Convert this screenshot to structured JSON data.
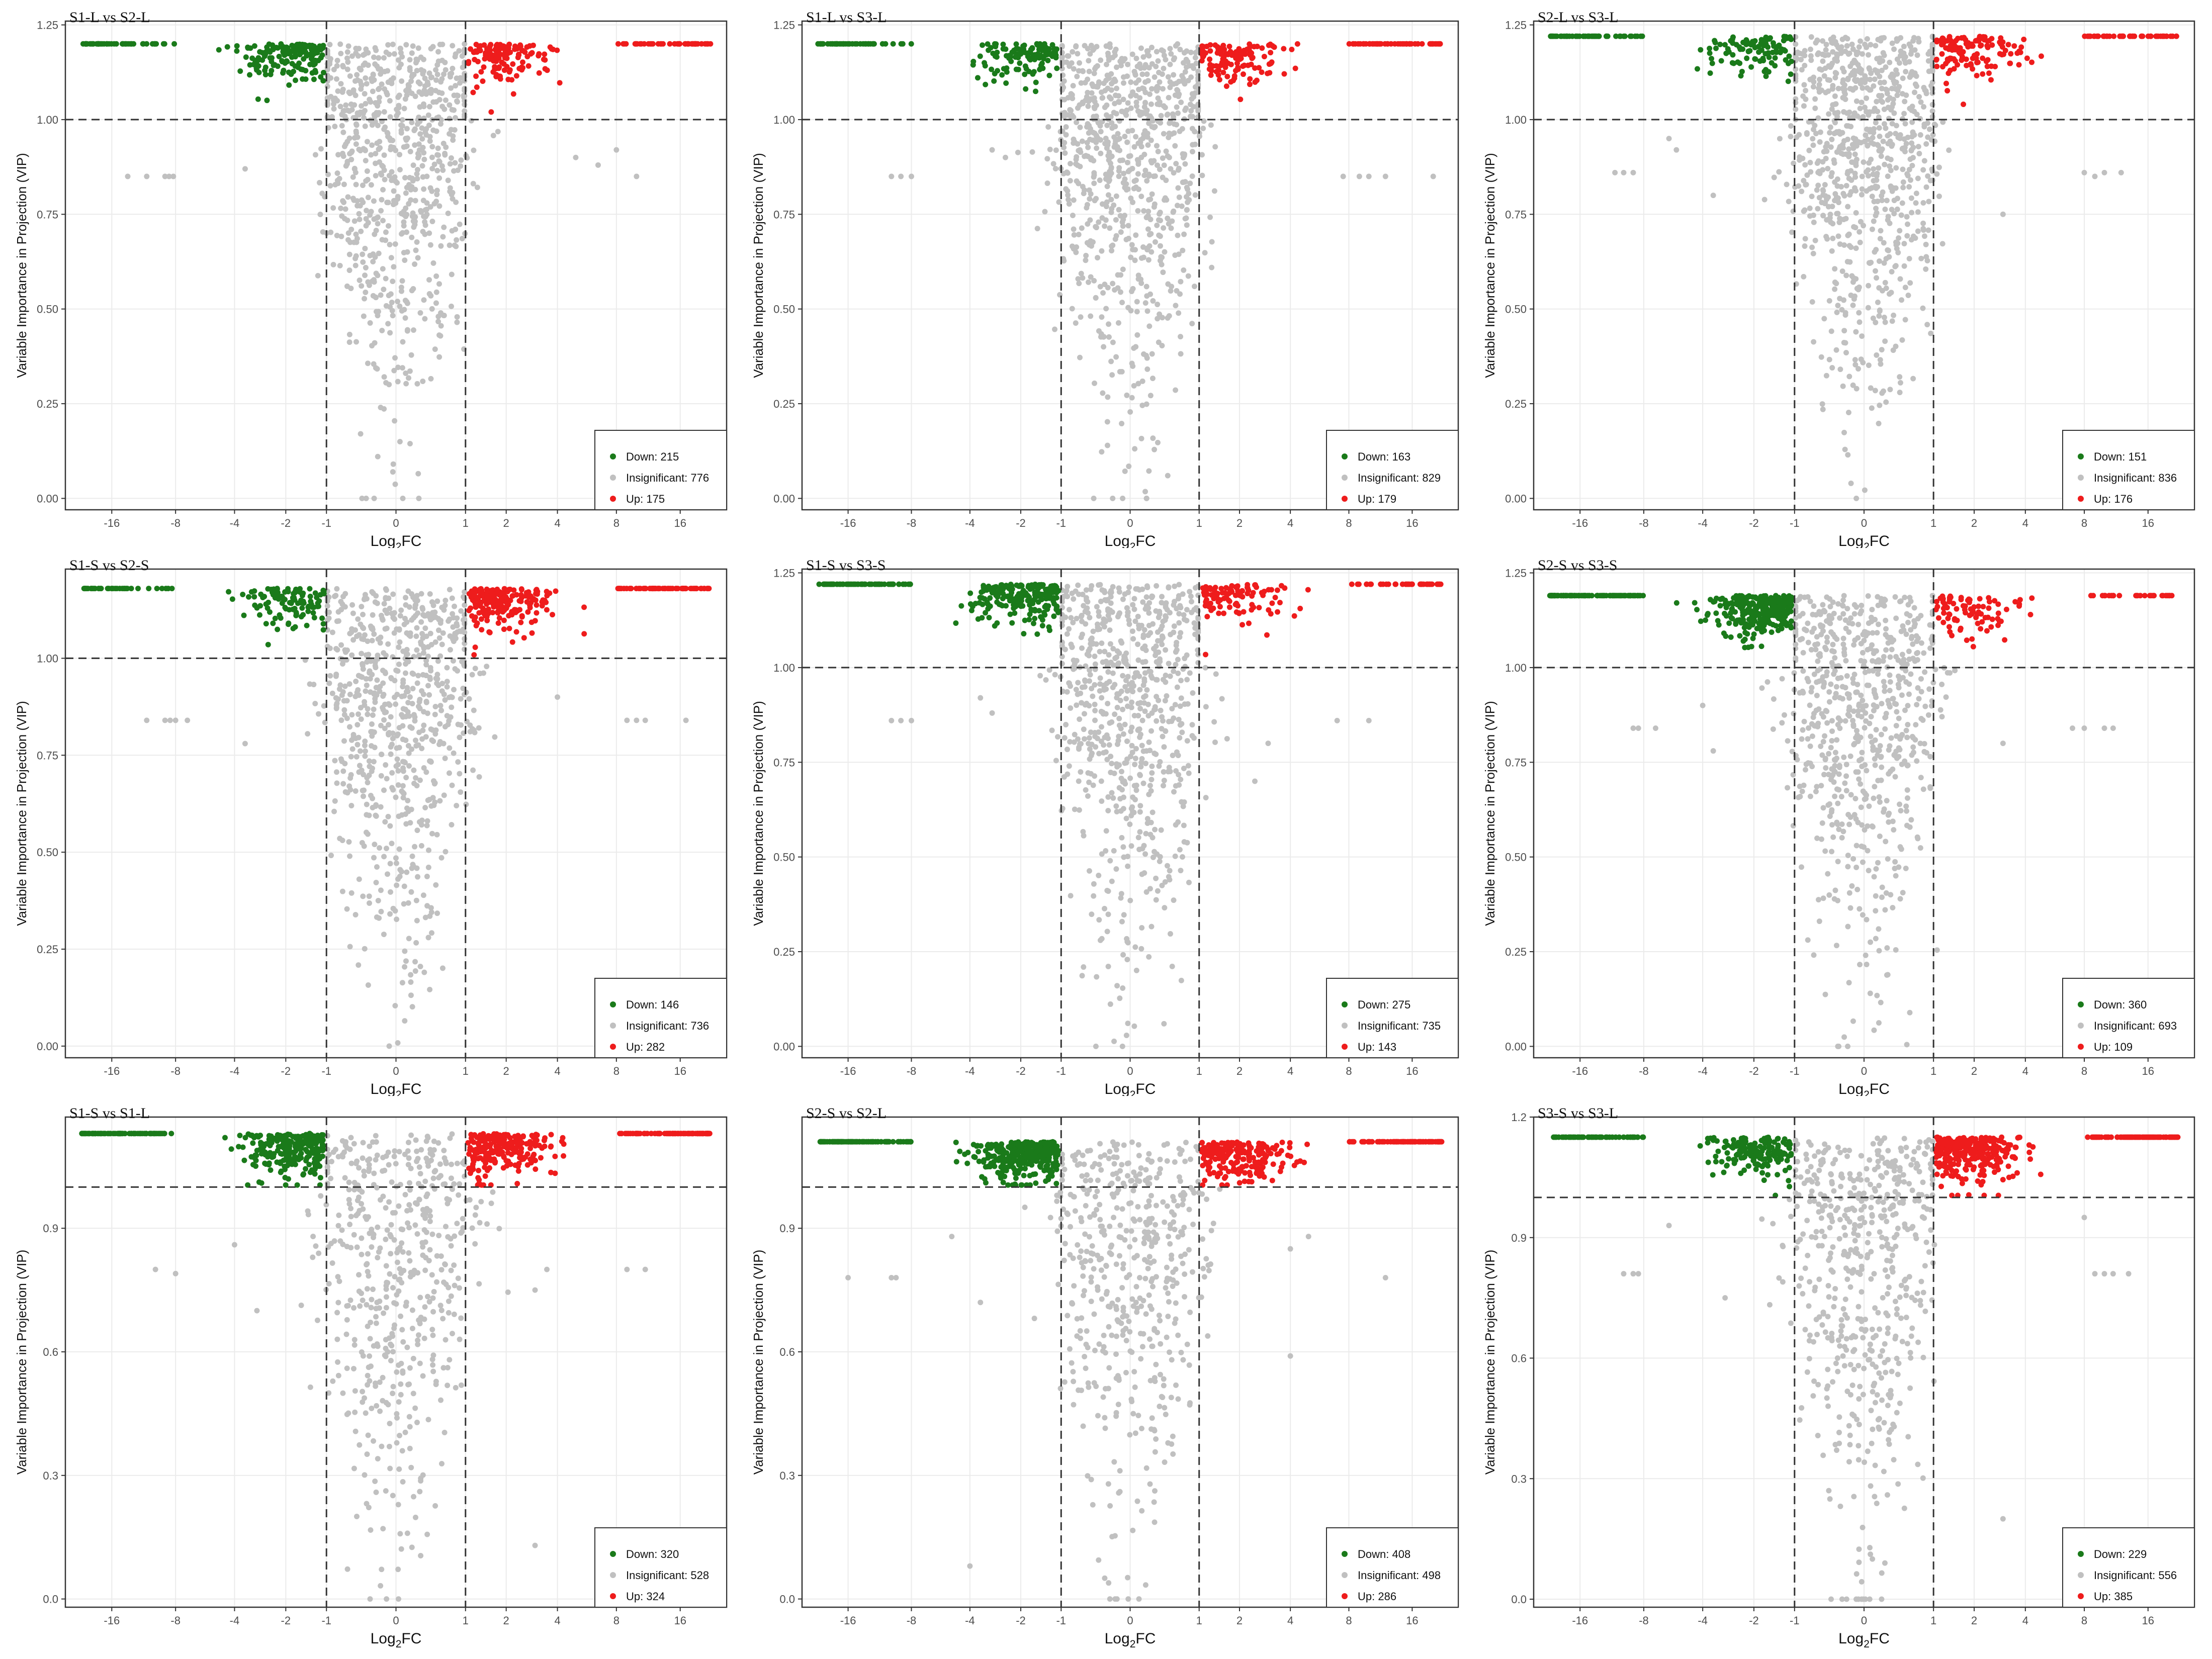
{
  "figure": {
    "background": "#ffffff",
    "colors": {
      "down": "#1a7a1a",
      "insignificant": "#c0c0c0",
      "up": "#ee1c1c",
      "threshold_line": "#333333",
      "grid": "#ebebeb"
    }
  },
  "chart_data": [
    {
      "type": "scatter",
      "title": "S1-L vs S2-L",
      "xlabel": "Log2FC",
      "ylabel": "Variable Importance in Projection (VIP)",
      "x_ticks": [
        -16,
        -8,
        -4,
        -2,
        -1,
        0,
        1,
        2,
        4,
        8,
        16
      ],
      "y_ticks": [
        "0.00",
        "0.25",
        "0.50",
        "0.75",
        "1.00",
        "1.25"
      ],
      "ylim": [
        -0.03,
        1.26
      ],
      "vip_threshold": 1.0,
      "fc_thresholds": [
        -1,
        1
      ],
      "top_vip": 1.2,
      "outliers": [
        [
          -11,
          0.85
        ],
        [
          -9,
          0.85
        ],
        [
          -8.6,
          0.85
        ],
        [
          -8.2,
          0.85
        ],
        [
          -13.5,
          0.85
        ],
        [
          5,
          0.9
        ],
        [
          6.5,
          0.88
        ],
        [
          8,
          0.92
        ],
        [
          10,
          0.85
        ],
        [
          -3.5,
          0.87
        ]
      ],
      "legend": {
        "position": "bottom-right",
        "items": [
          {
            "label": "Down: 215",
            "key": "down"
          },
          {
            "label": "Insignificant: 776",
            "key": "insignificant"
          },
          {
            "label": "Up: 175",
            "key": "up"
          }
        ]
      }
    },
    {
      "type": "scatter",
      "title": "S1-L vs S3-L",
      "xlabel": "Log2FC",
      "ylabel": "Variable Importance in Projection (VIP)",
      "x_ticks": [
        -16,
        -8,
        -4,
        -2,
        -1,
        0,
        1,
        2,
        4,
        8,
        16
      ],
      "y_ticks": [
        "0.00",
        "0.25",
        "0.50",
        "0.75",
        "1.00",
        "1.25"
      ],
      "ylim": [
        -0.03,
        1.26
      ],
      "vip_threshold": 1.0,
      "fc_thresholds": [
        -1,
        1
      ],
      "top_vip": 1.2,
      "outliers": [
        [
          -10,
          0.85
        ],
        [
          -9,
          0.85
        ],
        [
          -8,
          0.85
        ],
        [
          7.5,
          0.85
        ],
        [
          9,
          0.85
        ],
        [
          10,
          0.85
        ],
        [
          12,
          0.85
        ],
        [
          20,
          0.85
        ],
        [
          -3,
          0.92
        ],
        [
          -2.5,
          0.9
        ]
      ],
      "legend": {
        "position": "bottom-right",
        "items": [
          {
            "label": "Down: 163",
            "key": "down"
          },
          {
            "label": "Insignificant: 829",
            "key": "insignificant"
          },
          {
            "label": "Up: 179",
            "key": "up"
          }
        ]
      }
    },
    {
      "type": "scatter",
      "title": "S2-L vs S3-L",
      "xlabel": "Log2FC",
      "ylabel": "Variable Importance in Projection (VIP)",
      "x_ticks": [
        -16,
        -8,
        -4,
        -2,
        -1,
        0,
        1,
        2,
        4,
        8,
        16
      ],
      "y_ticks": [
        "0.00",
        "0.25",
        "0.50",
        "0.75",
        "1.00",
        "1.25"
      ],
      "ylim": [
        -0.03,
        1.26
      ],
      "vip_threshold": 1.0,
      "fc_thresholds": [
        -1,
        1
      ],
      "top_vip": 1.22,
      "outliers": [
        [
          -11,
          0.86
        ],
        [
          -10,
          0.86
        ],
        [
          -9,
          0.86
        ],
        [
          -6,
          0.95
        ],
        [
          -5.5,
          0.92
        ],
        [
          8,
          0.86
        ],
        [
          9,
          0.85
        ],
        [
          10,
          0.86
        ],
        [
          12,
          0.86
        ],
        [
          -3.5,
          0.8
        ],
        [
          3,
          0.75
        ]
      ],
      "legend": {
        "position": "bottom-right",
        "items": [
          {
            "label": "Down: 151",
            "key": "down"
          },
          {
            "label": "Insignificant: 836",
            "key": "insignificant"
          },
          {
            "label": "Up: 176",
            "key": "up"
          }
        ]
      }
    },
    {
      "type": "scatter",
      "title": "S1-S vs S2-S",
      "xlabel": "Log2FC",
      "ylabel": "Variable Importance in Projection (VIP)",
      "x_ticks": [
        -16,
        -8,
        -4,
        -2,
        -1,
        0,
        1,
        2,
        4,
        8,
        16
      ],
      "y_ticks": [
        "0.00",
        "0.25",
        "0.50",
        "0.75",
        "1.00"
      ],
      "ylim": [
        -0.03,
        1.23
      ],
      "vip_threshold": 1.0,
      "fc_thresholds": [
        -1,
        1
      ],
      "top_vip": 1.18,
      "outliers": [
        [
          -11,
          0.84
        ],
        [
          -9,
          0.84
        ],
        [
          -8.5,
          0.84
        ],
        [
          -8,
          0.84
        ],
        [
          -7,
          0.84
        ],
        [
          9,
          0.84
        ],
        [
          10,
          0.84
        ],
        [
          11,
          0.84
        ],
        [
          17,
          0.84
        ],
        [
          4,
          0.9
        ],
        [
          -3.5,
          0.78
        ]
      ],
      "legend": {
        "position": "bottom-right",
        "items": [
          {
            "label": "Down: 146",
            "key": "down"
          },
          {
            "label": "Insignificant: 736",
            "key": "insignificant"
          },
          {
            "label": "Up: 282",
            "key": "up"
          }
        ]
      }
    },
    {
      "type": "scatter",
      "title": "S1-S vs S3-S",
      "xlabel": "Log2FC",
      "ylabel": "Variable Importance in Projection (VIP)",
      "x_ticks": [
        -16,
        -8,
        -4,
        -2,
        -1,
        0,
        1,
        2,
        4,
        8,
        16
      ],
      "y_ticks": [
        "0.00",
        "0.25",
        "0.50",
        "0.75",
        "1.00",
        "1.25"
      ],
      "ylim": [
        -0.03,
        1.26
      ],
      "vip_threshold": 1.0,
      "fc_thresholds": [
        -1,
        1
      ],
      "top_vip": 1.22,
      "outliers": [
        [
          -10,
          0.86
        ],
        [
          -9,
          0.86
        ],
        [
          -8,
          0.86
        ],
        [
          7,
          0.86
        ],
        [
          10,
          0.86
        ],
        [
          -3.5,
          0.92
        ],
        [
          -3,
          0.88
        ],
        [
          3,
          0.8
        ],
        [
          2.5,
          0.7
        ]
      ],
      "legend": {
        "position": "bottom-right",
        "items": [
          {
            "label": "Down: 275",
            "key": "down"
          },
          {
            "label": "Insignificant: 735",
            "key": "insignificant"
          },
          {
            "label": "Up: 143",
            "key": "up"
          }
        ]
      }
    },
    {
      "type": "scatter",
      "title": "S2-S vs S3-S",
      "xlabel": "Log2FC",
      "ylabel": "Variable Importance in Projection (VIP)",
      "x_ticks": [
        -16,
        -8,
        -4,
        -2,
        -1,
        0,
        1,
        2,
        4,
        8,
        16
      ],
      "y_ticks": [
        "0.00",
        "0.25",
        "0.50",
        "0.75",
        "1.00",
        "1.25"
      ],
      "ylim": [
        -0.03,
        1.26
      ],
      "vip_threshold": 1.0,
      "fc_thresholds": [
        -1,
        1
      ],
      "top_vip": 1.19,
      "outliers": [
        [
          -9,
          0.84
        ],
        [
          -8.5,
          0.84
        ],
        [
          -7,
          0.84
        ],
        [
          7,
          0.84
        ],
        [
          8,
          0.84
        ],
        [
          10,
          0.84
        ],
        [
          11,
          0.84
        ],
        [
          -4,
          0.9
        ],
        [
          3,
          0.8
        ],
        [
          -3.5,
          0.78
        ]
      ],
      "legend": {
        "position": "bottom-right",
        "items": [
          {
            "label": "Down: 360",
            "key": "down"
          },
          {
            "label": "Insignificant: 693",
            "key": "insignificant"
          },
          {
            "label": "Up: 109",
            "key": "up"
          }
        ]
      }
    },
    {
      "type": "scatter",
      "title": "S1-S vs S1-L",
      "xlabel": "Log2FC",
      "ylabel": "Variable Importance in Projection (VIP)",
      "x_ticks": [
        -16,
        -8,
        -4,
        -2,
        -1,
        0,
        1,
        2,
        4,
        8,
        16
      ],
      "y_ticks": [
        "0.0",
        "0.3",
        "0.6",
        "0.9"
      ],
      "ylim": [
        -0.02,
        1.17
      ],
      "vip_threshold": 1.0,
      "fc_thresholds": [
        -1,
        1
      ],
      "top_vip": 1.13,
      "outliers": [
        [
          -10,
          0.8
        ],
        [
          -8,
          0.79
        ],
        [
          -4,
          0.86
        ],
        [
          9,
          0.8
        ],
        [
          11,
          0.8
        ],
        [
          3,
          0.75
        ],
        [
          3.5,
          0.8
        ],
        [
          3,
          0.13
        ],
        [
          -3,
          0.7
        ]
      ],
      "legend": {
        "position": "bottom-right",
        "items": [
          {
            "label": "Down: 320",
            "key": "down"
          },
          {
            "label": "Insignificant: 528",
            "key": "insignificant"
          },
          {
            "label": "Up: 324",
            "key": "up"
          }
        ]
      }
    },
    {
      "type": "scatter",
      "title": "S2-S vs S2-L",
      "xlabel": "Log2FC",
      "ylabel": "Variable Importance in Projection (VIP)",
      "x_ticks": [
        -16,
        -8,
        -4,
        -2,
        -1,
        0,
        1,
        2,
        4,
        8,
        16
      ],
      "y_ticks": [
        "0.0",
        "0.3",
        "0.6",
        "0.9"
      ],
      "ylim": [
        -0.02,
        1.17
      ],
      "vip_threshold": 1.0,
      "fc_thresholds": [
        -1,
        1
      ],
      "top_vip": 1.11,
      "outliers": [
        [
          -16,
          0.78
        ],
        [
          -10,
          0.78
        ],
        [
          -9.5,
          0.78
        ],
        [
          -5,
          0.88
        ],
        [
          12,
          0.78
        ],
        [
          4,
          0.85
        ],
        [
          5,
          0.88
        ],
        [
          4,
          0.59
        ],
        [
          -4,
          0.08
        ],
        [
          -3.5,
          0.72
        ]
      ],
      "legend": {
        "position": "bottom-right",
        "items": [
          {
            "label": "Down: 408",
            "key": "down"
          },
          {
            "label": "Insignificant: 498",
            "key": "insignificant"
          },
          {
            "label": "Up: 286",
            "key": "up"
          }
        ]
      }
    },
    {
      "type": "scatter",
      "title": "S3-S vs S3-L",
      "xlabel": "Log2FC",
      "ylabel": "Variable Importance in Projection (VIP)",
      "x_ticks": [
        -16,
        -8,
        -4,
        -2,
        -1,
        0,
        1,
        2,
        4,
        8,
        16
      ],
      "y_ticks": [
        "0.0",
        "0.3",
        "0.6",
        "0.9",
        "1.2"
      ],
      "ylim": [
        -0.02,
        1.2
      ],
      "vip_threshold": 1.0,
      "fc_thresholds": [
        -1,
        1
      ],
      "top_vip": 1.15,
      "outliers": [
        [
          -10,
          0.81
        ],
        [
          -9,
          0.81
        ],
        [
          -8.5,
          0.81
        ],
        [
          -6,
          0.93
        ],
        [
          9,
          0.81
        ],
        [
          10,
          0.81
        ],
        [
          11,
          0.81
        ],
        [
          13,
          0.81
        ],
        [
          8,
          0.95
        ],
        [
          3,
          0.2
        ],
        [
          -3,
          0.75
        ]
      ],
      "legend": {
        "position": "bottom-right",
        "items": [
          {
            "label": "Down: 229",
            "key": "down"
          },
          {
            "label": "Insignificant: 556",
            "key": "insignificant"
          },
          {
            "label": "Up: 385",
            "key": "up"
          }
        ]
      }
    }
  ]
}
